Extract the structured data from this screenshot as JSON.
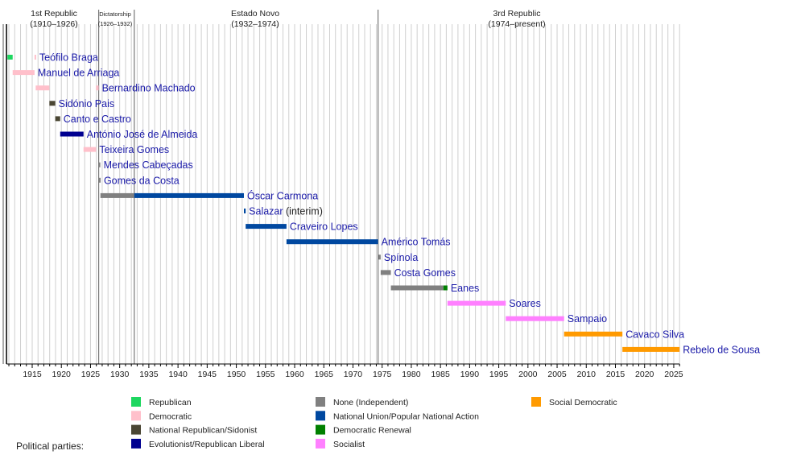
{
  "chart_data": {
    "type": "timeline",
    "xlim": [
      1910.6,
      2026
    ],
    "x_ticks": [
      1915,
      1920,
      1925,
      1930,
      1935,
      1940,
      1945,
      1950,
      1955,
      1960,
      1965,
      1970,
      1975,
      1980,
      1985,
      1990,
      1995,
      2000,
      2005,
      2010,
      2015,
      2020,
      2025
    ],
    "grid": "yearly vertical lines",
    "eras": [
      {
        "name": "1st Republic",
        "range": "(1910–1926)",
        "start": 1910.76,
        "end": 1926.4
      },
      {
        "name": "Dictatorship",
        "range": "(1926–1932)",
        "start": 1926.4,
        "end": 1932.5
      },
      {
        "name": "Estado Novo",
        "range": "(1932–1974)",
        "start": 1932.5,
        "end": 1974.3
      },
      {
        "name": "3rd Republic",
        "range": "(1974–present)",
        "start": 1974.3,
        "end": 2026
      }
    ],
    "parties": [
      {
        "key": "rep",
        "name": "Republican",
        "color": "#1ed760"
      },
      {
        "key": "dem",
        "name": "Democratic",
        "color": "#ffc0cb"
      },
      {
        "key": "nrs",
        "name": "National Republican/Sidonist",
        "color": "#4a4633"
      },
      {
        "key": "evo",
        "name": "Evolutionist/Republican Liberal",
        "color": "#000090"
      },
      {
        "key": "none",
        "name": "None (Independent)",
        "color": "#808080"
      },
      {
        "key": "un",
        "name": "National Union/Popular National Action",
        "color": "#0048a0"
      },
      {
        "key": "prd",
        "name": "Democratic Renewal",
        "color": "#008000"
      },
      {
        "key": "ps",
        "name": "Socialist",
        "color": "#ff80ff"
      },
      {
        "key": "psd",
        "name": "Social Democratic",
        "color": "#ff9a00"
      }
    ],
    "presidents": [
      {
        "name": "Teófilo Braga",
        "terms": [
          {
            "start": 1910.76,
            "end": 1911.65,
            "party": "rep"
          },
          {
            "start": 1915.4,
            "end": 1915.6,
            "party": "dem"
          }
        ]
      },
      {
        "name": "Manuel de Arriaga",
        "terms": [
          {
            "start": 1911.65,
            "end": 1915.4,
            "party": "dem"
          }
        ]
      },
      {
        "name": "Bernardino Machado",
        "terms": [
          {
            "start": 1915.6,
            "end": 1917.95,
            "party": "dem"
          },
          {
            "start": 1925.95,
            "end": 1926.4,
            "party": "dem"
          }
        ]
      },
      {
        "name": "Sidónio Pais",
        "terms": [
          {
            "start": 1917.95,
            "end": 1918.95,
            "party": "nrs"
          }
        ]
      },
      {
        "name": "Canto e Castro",
        "terms": [
          {
            "start": 1918.95,
            "end": 1919.8,
            "party": "nrs"
          }
        ]
      },
      {
        "name": "António José de Almeida",
        "terms": [
          {
            "start": 1919.8,
            "end": 1923.8,
            "party": "evo"
          }
        ]
      },
      {
        "name": "Teixeira Gomes",
        "terms": [
          {
            "start": 1923.8,
            "end": 1925.95,
            "party": "dem"
          }
        ]
      },
      {
        "name": "Mendes Cabeçadas",
        "terms": [
          {
            "start": 1926.4,
            "end": 1926.5,
            "party": "none"
          }
        ]
      },
      {
        "name": "Gomes da Costa",
        "terms": [
          {
            "start": 1926.45,
            "end": 1926.6,
            "party": "none"
          }
        ]
      },
      {
        "name": "Óscar Carmona",
        "terms": [
          {
            "start": 1926.7,
            "end": 1932.5,
            "party": "none"
          },
          {
            "start": 1932.5,
            "end": 1951.3,
            "party": "un"
          }
        ]
      },
      {
        "name": "Salazar",
        "note": "(interim)",
        "terms": [
          {
            "start": 1951.3,
            "end": 1951.6,
            "party": "un"
          }
        ]
      },
      {
        "name": "Craveiro Lopes",
        "terms": [
          {
            "start": 1951.6,
            "end": 1958.6,
            "party": "un"
          }
        ]
      },
      {
        "name": "Américo Tomás",
        "terms": [
          {
            "start": 1958.6,
            "end": 1974.3,
            "party": "un"
          }
        ]
      },
      {
        "name": "Spínola",
        "terms": [
          {
            "start": 1974.3,
            "end": 1974.75,
            "party": "none"
          }
        ]
      },
      {
        "name": "Costa Gomes",
        "terms": [
          {
            "start": 1974.75,
            "end": 1976.5,
            "party": "none"
          }
        ]
      },
      {
        "name": "Eanes",
        "terms": [
          {
            "start": 1976.5,
            "end": 1985.5,
            "party": "none"
          },
          {
            "start": 1985.5,
            "end": 1986.2,
            "party": "prd"
          }
        ]
      },
      {
        "name": "Soares",
        "terms": [
          {
            "start": 1986.2,
            "end": 1996.2,
            "party": "ps"
          }
        ]
      },
      {
        "name": "Sampaio",
        "terms": [
          {
            "start": 1996.2,
            "end": 2006.2,
            "party": "ps"
          }
        ]
      },
      {
        "name": "Cavaco Silva",
        "terms": [
          {
            "start": 2006.2,
            "end": 2016.2,
            "party": "psd"
          }
        ]
      },
      {
        "name": "Rebelo de Sousa",
        "terms": [
          {
            "start": 2016.2,
            "end": 2026,
            "party": "psd"
          }
        ]
      }
    ],
    "legend_title": "Political parties:",
    "legend_placement": "bottom"
  }
}
